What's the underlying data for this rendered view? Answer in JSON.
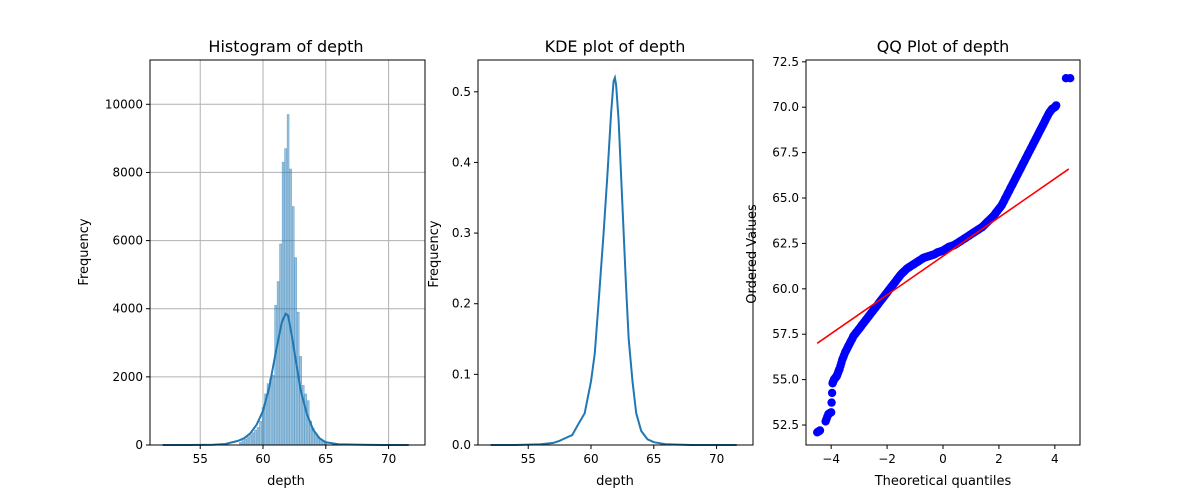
{
  "chart_data": [
    {
      "type": "histogram",
      "title": "Histogram of depth",
      "xlabel": "depth",
      "ylabel": "Frequency",
      "xlim": [
        51.0,
        72.9
      ],
      "ylim": [
        0,
        11300
      ],
      "xticks": [
        55,
        60,
        65,
        70
      ],
      "yticks": [
        0,
        2000,
        4000,
        6000,
        8000,
        10000
      ],
      "grid": true,
      "bar_color": "#1f77b4",
      "kde_color": "#1f77b4",
      "bins": [
        {
          "x": 58.2,
          "value": 80
        },
        {
          "x": 58.4,
          "value": 130
        },
        {
          "x": 58.6,
          "value": 170
        },
        {
          "x": 58.8,
          "value": 240
        },
        {
          "x": 59.0,
          "value": 300
        },
        {
          "x": 59.2,
          "value": 360
        },
        {
          "x": 59.4,
          "value": 440
        },
        {
          "x": 59.6,
          "value": 520
        },
        {
          "x": 59.8,
          "value": 700
        },
        {
          "x": 60.0,
          "value": 1100
        },
        {
          "x": 60.2,
          "value": 1500
        },
        {
          "x": 60.4,
          "value": 1800
        },
        {
          "x": 60.6,
          "value": 1950
        },
        {
          "x": 60.8,
          "value": 2050
        },
        {
          "x": 61.0,
          "value": 4100
        },
        {
          "x": 61.2,
          "value": 4800
        },
        {
          "x": 61.4,
          "value": 5900
        },
        {
          "x": 61.6,
          "value": 8300
        },
        {
          "x": 61.8,
          "value": 8700
        },
        {
          "x": 62.0,
          "value": 9700
        },
        {
          "x": 62.2,
          "value": 8100
        },
        {
          "x": 62.4,
          "value": 7000
        },
        {
          "x": 62.6,
          "value": 5500
        },
        {
          "x": 62.8,
          "value": 3900
        },
        {
          "x": 63.0,
          "value": 2600
        },
        {
          "x": 63.2,
          "value": 1750
        },
        {
          "x": 63.4,
          "value": 1500
        },
        {
          "x": 63.6,
          "value": 1300
        },
        {
          "x": 63.8,
          "value": 700
        },
        {
          "x": 64.0,
          "value": 500
        },
        {
          "x": 64.2,
          "value": 350
        },
        {
          "x": 64.4,
          "value": 250
        },
        {
          "x": 64.6,
          "value": 150
        },
        {
          "x": 64.8,
          "value": 100
        },
        {
          "x": 65.0,
          "value": 70
        }
      ],
      "kde": {
        "x": [
          52,
          54,
          56,
          57,
          58,
          58.5,
          59,
          59.5,
          60,
          60.5,
          61,
          61.5,
          61.8,
          62,
          62.3,
          62.6,
          63,
          63.5,
          64,
          64.5,
          65,
          66,
          68,
          70,
          71.6
        ],
        "y": [
          0,
          0,
          10,
          30,
          120,
          200,
          350,
          600,
          1000,
          1700,
          2700,
          3600,
          3850,
          3800,
          3200,
          2500,
          1600,
          900,
          450,
          200,
          80,
          20,
          5,
          0,
          0
        ]
      }
    },
    {
      "type": "line",
      "title": "KDE plot of depth",
      "xlabel": "depth",
      "ylabel": "Frequency",
      "xlim": [
        51.0,
        72.9
      ],
      "ylim": [
        0,
        0.545
      ],
      "xticks": [
        55,
        60,
        65,
        70
      ],
      "yticks": [
        0.0,
        0.1,
        0.2,
        0.3,
        0.4,
        0.5
      ],
      "grid": false,
      "line_color": "#1f77b4",
      "x": [
        52,
        54,
        56,
        57,
        57.5,
        58,
        58.5,
        59,
        59.5,
        60,
        60.3,
        60.6,
        61,
        61.3,
        61.6,
        61.8,
        61.9,
        62,
        62.2,
        62.5,
        62.8,
        63,
        63.3,
        63.6,
        64,
        64.5,
        65,
        66,
        68,
        70,
        71.6
      ],
      "y": [
        0,
        0,
        0.001,
        0.003,
        0.006,
        0.01,
        0.014,
        0.03,
        0.045,
        0.09,
        0.13,
        0.2,
        0.3,
        0.38,
        0.47,
        0.515,
        0.52,
        0.51,
        0.46,
        0.34,
        0.22,
        0.15,
        0.09,
        0.045,
        0.02,
        0.008,
        0.004,
        0.001,
        0,
        0,
        0
      ]
    },
    {
      "type": "scatter",
      "title": "QQ Plot of depth",
      "xlabel": "Theoretical quantiles",
      "ylabel": "Ordered Values",
      "xlim": [
        -4.9,
        4.9
      ],
      "ylim": [
        51.4,
        72.6
      ],
      "xticks": [
        -4,
        -2,
        0,
        2,
        4
      ],
      "yticks": [
        52.5,
        55.0,
        57.5,
        60.0,
        62.5,
        65.0,
        67.5,
        70.0,
        72.5
      ],
      "grid": false,
      "point_color": "#0000ff",
      "line_color": "#ff0000",
      "fit_line": {
        "x": [
          -4.5,
          4.5
        ],
        "y": [
          57.0,
          66.6
        ]
      },
      "points": {
        "x": [
          -4.5,
          -4.4,
          -4.2,
          -4.1,
          -4.0,
          -3.95,
          -3.9,
          -3.85,
          -3.8,
          -3.75,
          -3.7,
          -3.6,
          -3.5,
          -3.4,
          -3.3,
          -3.2,
          -3.1,
          -3.0,
          -2.9,
          -2.8,
          -2.7,
          -2.6,
          -2.5,
          -2.4,
          -2.3,
          -2.2,
          -2.1,
          -2.0,
          -1.9,
          -1.8,
          -1.7,
          -1.6,
          -1.5,
          -1.4,
          -1.3,
          -1.2,
          -1.1,
          -1.0,
          -0.9,
          -0.8,
          -0.7,
          -0.6,
          -0.5,
          -0.4,
          -0.3,
          -0.2,
          -0.1,
          0.0,
          0.1,
          0.2,
          0.3,
          0.4,
          0.5,
          0.6,
          0.7,
          0.8,
          0.9,
          1.0,
          1.1,
          1.2,
          1.3,
          1.4,
          1.5,
          1.6,
          1.7,
          1.8,
          1.9,
          2.0,
          2.1,
          2.2,
          2.3,
          2.4,
          2.5,
          2.6,
          2.7,
          2.8,
          2.9,
          3.0,
          3.1,
          3.2,
          3.3,
          3.4,
          3.5,
          3.6,
          3.7,
          3.8,
          3.9,
          4.0,
          4.05,
          4.4,
          4.55
        ],
        "y": [
          52.1,
          52.2,
          52.7,
          53.1,
          53.2,
          54.8,
          55.0,
          55.1,
          55.2,
          55.4,
          55.6,
          56.1,
          56.5,
          56.8,
          57.1,
          57.4,
          57.6,
          57.8,
          58.0,
          58.2,
          58.4,
          58.6,
          58.8,
          59.0,
          59.2,
          59.4,
          59.6,
          59.8,
          60.0,
          60.2,
          60.4,
          60.6,
          60.8,
          60.95,
          61.1,
          61.2,
          61.3,
          61.4,
          61.5,
          61.6,
          61.7,
          61.75,
          61.8,
          61.85,
          61.9,
          62.0,
          62.05,
          62.1,
          62.2,
          62.3,
          62.35,
          62.4,
          62.5,
          62.6,
          62.7,
          62.8,
          62.9,
          63.0,
          63.1,
          63.2,
          63.3,
          63.4,
          63.55,
          63.7,
          63.85,
          64.0,
          64.2,
          64.4,
          64.6,
          64.9,
          65.2,
          65.5,
          65.8,
          66.1,
          66.4,
          66.7,
          67.0,
          67.3,
          67.6,
          67.9,
          68.2,
          68.5,
          68.8,
          69.1,
          69.4,
          69.7,
          69.9,
          70.0,
          70.1,
          71.6,
          71.6
        ]
      }
    }
  ]
}
